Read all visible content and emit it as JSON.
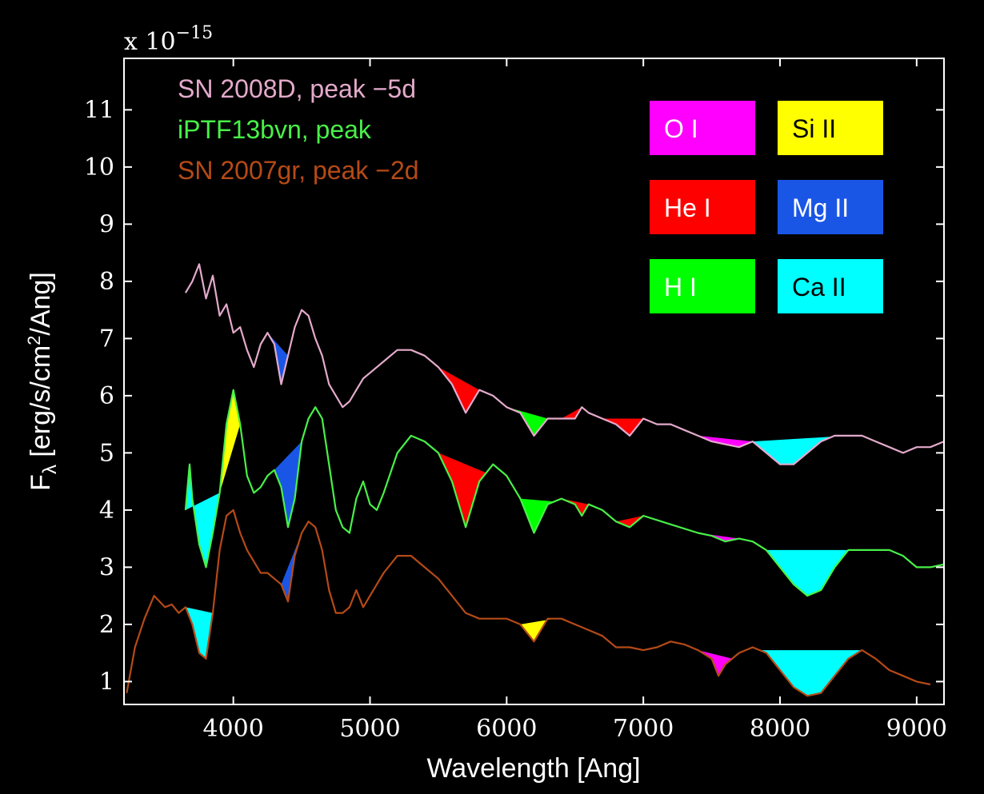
{
  "chart_data": {
    "type": "line",
    "xlabel": "Wavelength [Ang]",
    "ylabel_main": "F",
    "ylabel_sub": "λ",
    "ylabel_rest": " [erg/s/cm",
    "ylabel_sup": "2",
    "ylabel_end": "/Ang]",
    "multiplier_base": "x 10",
    "multiplier_exp": "−15",
    "xlim": [
      3200,
      9200
    ],
    "ylim": [
      0.6,
      11.9
    ],
    "xticks": [
      4000,
      5000,
      6000,
      7000,
      8000,
      9000
    ],
    "yticks": [
      1,
      2,
      3,
      4,
      5,
      6,
      7,
      8,
      9,
      10,
      11
    ],
    "legend_placement": "top-left",
    "series": [
      {
        "name": "SN 2008D, peak −5d",
        "color": "#e3aacb",
        "points": [
          [
            3650,
            7.8
          ],
          [
            3700,
            8.0
          ],
          [
            3750,
            8.3
          ],
          [
            3800,
            7.7
          ],
          [
            3850,
            8.1
          ],
          [
            3900,
            7.4
          ],
          [
            3950,
            7.6
          ],
          [
            4000,
            7.1
          ],
          [
            4050,
            7.2
          ],
          [
            4100,
            6.8
          ],
          [
            4150,
            6.5
          ],
          [
            4200,
            6.9
          ],
          [
            4250,
            7.1
          ],
          [
            4300,
            6.9
          ],
          [
            4350,
            6.2
          ],
          [
            4400,
            6.7
          ],
          [
            4450,
            7.2
          ],
          [
            4500,
            7.5
          ],
          [
            4550,
            7.4
          ],
          [
            4600,
            7.0
          ],
          [
            4650,
            6.7
          ],
          [
            4700,
            6.2
          ],
          [
            4750,
            6.0
          ],
          [
            4800,
            5.8
          ],
          [
            4850,
            5.9
          ],
          [
            4900,
            6.1
          ],
          [
            4950,
            6.3
          ],
          [
            5000,
            6.4
          ],
          [
            5100,
            6.6
          ],
          [
            5200,
            6.8
          ],
          [
            5300,
            6.8
          ],
          [
            5400,
            6.7
          ],
          [
            5500,
            6.5
          ],
          [
            5600,
            6.2
          ],
          [
            5700,
            5.7
          ],
          [
            5800,
            6.1
          ],
          [
            5900,
            6.0
          ],
          [
            6000,
            5.8
          ],
          [
            6100,
            5.7
          ],
          [
            6200,
            5.3
          ],
          [
            6300,
            5.6
          ],
          [
            6400,
            5.6
          ],
          [
            6500,
            5.6
          ],
          [
            6550,
            5.8
          ],
          [
            6600,
            5.7
          ],
          [
            6700,
            5.6
          ],
          [
            6800,
            5.5
          ],
          [
            6900,
            5.3
          ],
          [
            7000,
            5.6
          ],
          [
            7100,
            5.5
          ],
          [
            7200,
            5.5
          ],
          [
            7300,
            5.4
          ],
          [
            7400,
            5.3
          ],
          [
            7500,
            5.2
          ],
          [
            7600,
            5.15
          ],
          [
            7700,
            5.1
          ],
          [
            7800,
            5.2
          ],
          [
            7900,
            5.0
          ],
          [
            8000,
            4.8
          ],
          [
            8100,
            4.8
          ],
          [
            8200,
            5.0
          ],
          [
            8300,
            5.2
          ],
          [
            8400,
            5.3
          ],
          [
            8500,
            5.3
          ],
          [
            8600,
            5.3
          ],
          [
            8700,
            5.2
          ],
          [
            8800,
            5.1
          ],
          [
            8900,
            5.0
          ],
          [
            9000,
            5.1
          ],
          [
            9100,
            5.1
          ],
          [
            9200,
            5.2
          ]
        ]
      },
      {
        "name": "iPTF13bvn, peak",
        "color": "#48f048",
        "points": [
          [
            3650,
            4.0
          ],
          [
            3680,
            4.8
          ],
          [
            3700,
            4.2
          ],
          [
            3750,
            3.4
          ],
          [
            3800,
            3.0
          ],
          [
            3850,
            3.6
          ],
          [
            3900,
            4.3
          ],
          [
            3950,
            5.5
          ],
          [
            4000,
            6.1
          ],
          [
            4050,
            5.5
          ],
          [
            4100,
            4.6
          ],
          [
            4150,
            4.3
          ],
          [
            4200,
            4.4
          ],
          [
            4250,
            4.6
          ],
          [
            4300,
            4.7
          ],
          [
            4350,
            4.4
          ],
          [
            4400,
            3.7
          ],
          [
            4450,
            4.2
          ],
          [
            4500,
            5.2
          ],
          [
            4550,
            5.6
          ],
          [
            4600,
            5.8
          ],
          [
            4650,
            5.6
          ],
          [
            4700,
            4.8
          ],
          [
            4750,
            4.0
          ],
          [
            4800,
            3.7
          ],
          [
            4850,
            3.6
          ],
          [
            4900,
            4.2
          ],
          [
            4950,
            4.5
          ],
          [
            5000,
            4.1
          ],
          [
            5050,
            4.0
          ],
          [
            5100,
            4.3
          ],
          [
            5200,
            5.0
          ],
          [
            5300,
            5.3
          ],
          [
            5400,
            5.2
          ],
          [
            5500,
            5.0
          ],
          [
            5600,
            4.5
          ],
          [
            5700,
            3.7
          ],
          [
            5800,
            4.5
          ],
          [
            5900,
            4.8
          ],
          [
            6000,
            4.6
          ],
          [
            6100,
            4.2
          ],
          [
            6200,
            3.6
          ],
          [
            6300,
            4.1
          ],
          [
            6400,
            4.2
          ],
          [
            6500,
            4.1
          ],
          [
            6550,
            3.9
          ],
          [
            6600,
            4.1
          ],
          [
            6700,
            4.0
          ],
          [
            6800,
            3.8
          ],
          [
            6900,
            3.7
          ],
          [
            7000,
            3.9
          ],
          [
            7200,
            3.75
          ],
          [
            7400,
            3.6
          ],
          [
            7500,
            3.55
          ],
          [
            7600,
            3.45
          ],
          [
            7700,
            3.5
          ],
          [
            7800,
            3.45
          ],
          [
            7900,
            3.3
          ],
          [
            8000,
            3.0
          ],
          [
            8100,
            2.7
          ],
          [
            8200,
            2.5
          ],
          [
            8300,
            2.6
          ],
          [
            8400,
            3.0
          ],
          [
            8500,
            3.3
          ],
          [
            8600,
            3.3
          ],
          [
            8700,
            3.3
          ],
          [
            8800,
            3.3
          ],
          [
            8900,
            3.2
          ],
          [
            9000,
            3.0
          ],
          [
            9100,
            3.0
          ],
          [
            9200,
            3.05
          ]
        ]
      },
      {
        "name": "SN 2007gr, peak −2d",
        "color": "#b54a17",
        "points": [
          [
            3220,
            0.8
          ],
          [
            3280,
            1.6
          ],
          [
            3350,
            2.1
          ],
          [
            3420,
            2.5
          ],
          [
            3500,
            2.3
          ],
          [
            3550,
            2.35
          ],
          [
            3600,
            2.2
          ],
          [
            3650,
            2.3
          ],
          [
            3700,
            2.0
          ],
          [
            3750,
            1.5
          ],
          [
            3800,
            1.4
          ],
          [
            3850,
            2.2
          ],
          [
            3900,
            3.3
          ],
          [
            3950,
            3.9
          ],
          [
            4000,
            4.0
          ],
          [
            4050,
            3.6
          ],
          [
            4100,
            3.3
          ],
          [
            4150,
            3.1
          ],
          [
            4200,
            2.9
          ],
          [
            4250,
            2.9
          ],
          [
            4300,
            2.8
          ],
          [
            4350,
            2.7
          ],
          [
            4400,
            2.4
          ],
          [
            4450,
            3.2
          ],
          [
            4500,
            3.6
          ],
          [
            4550,
            3.8
          ],
          [
            4600,
            3.7
          ],
          [
            4650,
            3.3
          ],
          [
            4700,
            2.6
          ],
          [
            4750,
            2.2
          ],
          [
            4800,
            2.2
          ],
          [
            4850,
            2.3
          ],
          [
            4900,
            2.6
          ],
          [
            4950,
            2.3
          ],
          [
            5000,
            2.5
          ],
          [
            5100,
            2.9
          ],
          [
            5200,
            3.2
          ],
          [
            5300,
            3.2
          ],
          [
            5400,
            3.0
          ],
          [
            5500,
            2.8
          ],
          [
            5600,
            2.5
          ],
          [
            5700,
            2.2
          ],
          [
            5800,
            2.1
          ],
          [
            5900,
            2.1
          ],
          [
            6000,
            2.1
          ],
          [
            6100,
            2.0
          ],
          [
            6200,
            1.7
          ],
          [
            6300,
            2.1
          ],
          [
            6400,
            2.1
          ],
          [
            6500,
            2.0
          ],
          [
            6600,
            1.9
          ],
          [
            6700,
            1.8
          ],
          [
            6800,
            1.6
          ],
          [
            6900,
            1.6
          ],
          [
            7000,
            1.55
          ],
          [
            7100,
            1.6
          ],
          [
            7200,
            1.7
          ],
          [
            7300,
            1.65
          ],
          [
            7400,
            1.55
          ],
          [
            7500,
            1.4
          ],
          [
            7550,
            1.1
          ],
          [
            7600,
            1.3
          ],
          [
            7700,
            1.5
          ],
          [
            7800,
            1.6
          ],
          [
            7900,
            1.5
          ],
          [
            8000,
            1.2
          ],
          [
            8100,
            0.9
          ],
          [
            8200,
            0.75
          ],
          [
            8300,
            0.8
          ],
          [
            8400,
            1.1
          ],
          [
            8500,
            1.4
          ],
          [
            8600,
            1.55
          ],
          [
            8700,
            1.4
          ],
          [
            8800,
            1.2
          ],
          [
            8900,
            1.1
          ],
          [
            9000,
            1.0
          ],
          [
            9100,
            0.95
          ]
        ]
      }
    ],
    "features": [
      {
        "ion": "Mg II",
        "series": 0,
        "x1": 4250,
        "xmin": 4350,
        "x2": 4400
      },
      {
        "ion": "He I",
        "series": 0,
        "x1": 5500,
        "xmin": 5700,
        "x2": 5800
      },
      {
        "ion": "H I",
        "series": 0,
        "x1": 6000,
        "xmin": 6200,
        "x2": 6300
      },
      {
        "ion": "He I",
        "series": 0,
        "x1": 6400,
        "xmin": 6450,
        "x2": 6550
      },
      {
        "ion": "He I",
        "series": 0,
        "x1": 6700,
        "xmin": 6900,
        "x2": 7000
      },
      {
        "ion": "O I",
        "series": 0,
        "x1": 7400,
        "xmin": 7600,
        "x2": 7800
      },
      {
        "ion": "Ca II",
        "series": 0,
        "x1": 7800,
        "xmin": 8050,
        "x2": 8500
      },
      {
        "ion": "Si II",
        "series": 1,
        "x1": 3900,
        "xmin": 3950,
        "x2": 4050
      },
      {
        "ion": "Ca II",
        "series": 1,
        "x1": 3650,
        "xmin": 3800,
        "x2": 3900
      },
      {
        "ion": "Mg II",
        "series": 1,
        "x1": 4300,
        "xmin": 4400,
        "x2": 4500
      },
      {
        "ion": "He I",
        "series": 1,
        "x1": 5500,
        "xmin": 5700,
        "x2": 5850
      },
      {
        "ion": "H I",
        "series": 1,
        "x1": 6100,
        "xmin": 6200,
        "x2": 6350
      },
      {
        "ion": "He I",
        "series": 1,
        "x1": 6400,
        "xmin": 6550,
        "x2": 6600
      },
      {
        "ion": "He I",
        "series": 1,
        "x1": 6800,
        "xmin": 6900,
        "x2": 7000
      },
      {
        "ion": "O I",
        "series": 1,
        "x1": 7400,
        "xmin": 7600,
        "x2": 7700
      },
      {
        "ion": "Ca II",
        "series": 1,
        "x1": 7900,
        "xmin": 8200,
        "x2": 8600
      },
      {
        "ion": "Ca II",
        "series": 2,
        "x1": 3650,
        "xmin": 3800,
        "x2": 3850
      },
      {
        "ion": "Mg II",
        "series": 2,
        "x1": 4350,
        "xmin": 4400,
        "x2": 4500
      },
      {
        "ion": "Si II",
        "series": 2,
        "x1": 6100,
        "xmin": 6200,
        "x2": 6350
      },
      {
        "ion": "O I",
        "series": 2,
        "x1": 7400,
        "xmin": 7550,
        "x2": 7650
      },
      {
        "ion": "Ca II",
        "series": 2,
        "x1": 7850,
        "xmin": 8200,
        "x2": 8600
      }
    ],
    "ion_legend": [
      {
        "label": "O I",
        "color": "#ff00ff",
        "text_color": "#ffffff"
      },
      {
        "label": "Si II",
        "color": "#ffff00",
        "text_color": "#000000"
      },
      {
        "label": "He I",
        "color": "#ff0000",
        "text_color": "#ffffff"
      },
      {
        "label": "Mg II",
        "color": "#1a56e6",
        "text_color": "#ffffff"
      },
      {
        "label": "H I",
        "color": "#00ff00",
        "text_color": "#ffffff"
      },
      {
        "label": "Ca II",
        "color": "#00ffff",
        "text_color": "#000000"
      }
    ]
  }
}
